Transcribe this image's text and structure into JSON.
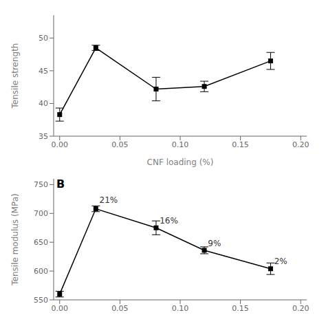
{
  "chart_data": [
    {
      "type": "line",
      "x": [
        0.0,
        0.03,
        0.08,
        0.12,
        0.175
      ],
      "values": [
        38.3,
        48.5,
        42.2,
        42.6,
        46.5
      ],
      "yerr": [
        1.0,
        0.4,
        1.8,
        0.8,
        1.3
      ],
      "color": "black",
      "marker": "square",
      "xlabel": "CNF  loading (%)",
      "ylabel": "Tensile strength",
      "xlim": [
        -0.005,
        0.205
      ],
      "ylim": [
        35,
        53.5
      ],
      "xticks": [
        {
          "value": 0.0,
          "label": "0.00"
        },
        0.05,
        {
          "value": 0.1,
          "label": "0.10"
        },
        0.15,
        {
          "value": 0.2,
          "label": "0.20"
        }
      ],
      "yticks": [
        35,
        40,
        45,
        50
      ]
    },
    {
      "type": "line",
      "title": "B",
      "x": [
        0.0,
        0.03,
        0.08,
        0.12,
        0.175
      ],
      "values": [
        560,
        708,
        675,
        636,
        604
      ],
      "yerr": [
        5,
        5,
        12,
        6,
        10
      ],
      "color": "black",
      "marker": "square",
      "ylabel": "Tensile modulus (MPa)",
      "annotations": [
        {
          "text": "21%",
          "x": 0.033,
          "y": 718
        },
        {
          "text": "16%",
          "x": 0.083,
          "y": 682
        },
        {
          "text": "9%",
          "x": 0.123,
          "y": 643
        },
        {
          "text": "2%",
          "x": 0.178,
          "y": 612
        }
      ],
      "xlim": [
        -0.005,
        0.205
      ],
      "ylim": [
        550,
        760
      ],
      "xticks": [
        {
          "value": 0.0,
          "label": "0.00"
        },
        0.05,
        {
          "value": 0.1,
          "label": "0.10"
        },
        0.15,
        {
          "value": 0.2,
          "label": "0.20"
        }
      ],
      "yticks": [
        550,
        600,
        650,
        700,
        750
      ]
    }
  ]
}
